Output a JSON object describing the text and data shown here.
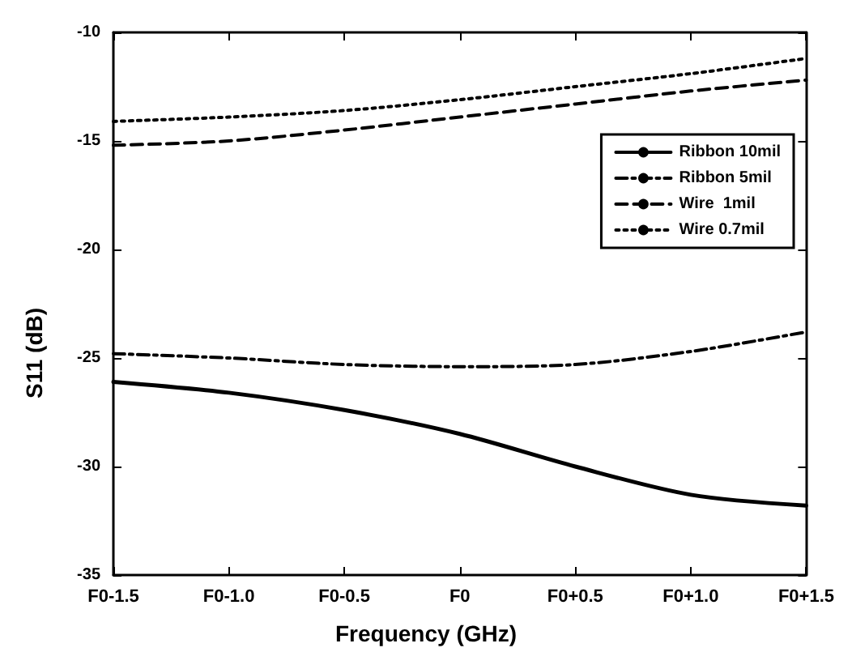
{
  "chart_data": {
    "type": "line",
    "xlabel": "Frequency (GHz)",
    "ylabel": "S11 (dB)",
    "categories": [
      "F0-1.5",
      "F0-1.0",
      "F0-0.5",
      "F0",
      "F0+0.5",
      "F0+1.0",
      "F0+1.5"
    ],
    "ylim": [
      -35,
      -10
    ],
    "yticks": [
      -35,
      -30,
      -25,
      -20,
      -15,
      -10
    ],
    "grid": false,
    "legend": "top right",
    "marker": "none",
    "series": [
      {
        "name": "Ribbon 10mil",
        "color": "#000000",
        "line_style": "solid",
        "values": [
          -26.1,
          -26.6,
          -27.4,
          -28.5,
          -30.0,
          -31.3,
          -31.8
        ]
      },
      {
        "name": "Ribbon 5mil",
        "color": "#000000",
        "line_style": "dashdot",
        "values": [
          -24.8,
          -25.0,
          -25.3,
          -25.4,
          -25.3,
          -24.7,
          -23.8
        ]
      },
      {
        "name": "Wire  1mil",
        "color": "#000000",
        "line_style": "dashed",
        "values": [
          -15.2,
          -15.0,
          -14.5,
          -13.9,
          -13.3,
          -12.7,
          -12.2
        ]
      },
      {
        "name": "Wire 0.7mil",
        "color": "#000000",
        "line_style": "dotted",
        "values": [
          -14.1,
          -13.9,
          -13.6,
          -13.1,
          -12.5,
          -11.9,
          -11.2
        ]
      }
    ]
  }
}
